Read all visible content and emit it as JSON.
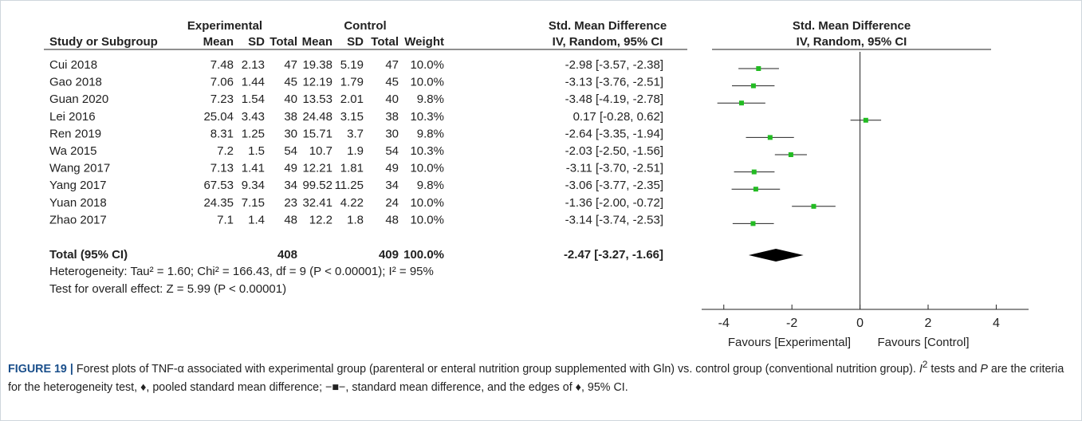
{
  "header": {
    "experimental": "Experimental",
    "control": "Control",
    "effect": "Std. Mean Difference",
    "plot_title": "Std. Mean Difference"
  },
  "columns": {
    "study": "Study or Subgroup",
    "exp_mean": "Mean",
    "exp_sd": "SD",
    "exp_total": "Total",
    "ctl_mean": "Mean",
    "ctl_sd": "SD",
    "ctl_total": "Total",
    "weight": "Weight",
    "ci": "IV, Random, 95% CI",
    "plot_ci": "IV, Random, 95% CI"
  },
  "rows": [
    {
      "study": "Cui 2018",
      "exp_mean": "7.48",
      "exp_sd": "2.13",
      "exp_total": "47",
      "ctl_mean": "19.38",
      "ctl_sd": "5.19",
      "ctl_total": "47",
      "weight": "10.0%",
      "ci": "-2.98 [-3.57, -2.38]",
      "est": -2.98,
      "lo": -3.57,
      "hi": -2.38
    },
    {
      "study": "Gao 2018",
      "exp_mean": "7.06",
      "exp_sd": "1.44",
      "exp_total": "45",
      "ctl_mean": "12.19",
      "ctl_sd": "1.79",
      "ctl_total": "45",
      "weight": "10.0%",
      "ci": "-3.13 [-3.76, -2.51]",
      "est": -3.13,
      "lo": -3.76,
      "hi": -2.51
    },
    {
      "study": "Guan 2020",
      "exp_mean": "7.23",
      "exp_sd": "1.54",
      "exp_total": "40",
      "ctl_mean": "13.53",
      "ctl_sd": "2.01",
      "ctl_total": "40",
      "weight": "9.8%",
      "ci": "-3.48 [-4.19, -2.78]",
      "est": -3.48,
      "lo": -4.19,
      "hi": -2.78
    },
    {
      "study": "Lei 2016",
      "exp_mean": "25.04",
      "exp_sd": "3.43",
      "exp_total": "38",
      "ctl_mean": "24.48",
      "ctl_sd": "3.15",
      "ctl_total": "38",
      "weight": "10.3%",
      "ci": "0.17 [-0.28, 0.62]",
      "est": 0.17,
      "lo": -0.28,
      "hi": 0.62
    },
    {
      "study": "Ren 2019",
      "exp_mean": "8.31",
      "exp_sd": "1.25",
      "exp_total": "30",
      "ctl_mean": "15.71",
      "ctl_sd": "3.7",
      "ctl_total": "30",
      "weight": "9.8%",
      "ci": "-2.64 [-3.35, -1.94]",
      "est": -2.64,
      "lo": -3.35,
      "hi": -1.94
    },
    {
      "study": "Wa 2015",
      "exp_mean": "7.2",
      "exp_sd": "1.5",
      "exp_total": "54",
      "ctl_mean": "10.7",
      "ctl_sd": "1.9",
      "ctl_total": "54",
      "weight": "10.3%",
      "ci": "-2.03 [-2.50, -1.56]",
      "est": -2.03,
      "lo": -2.5,
      "hi": -1.56
    },
    {
      "study": "Wang 2017",
      "exp_mean": "7.13",
      "exp_sd": "1.41",
      "exp_total": "49",
      "ctl_mean": "12.21",
      "ctl_sd": "1.81",
      "ctl_total": "49",
      "weight": "10.0%",
      "ci": "-3.11 [-3.70, -2.51]",
      "est": -3.11,
      "lo": -3.7,
      "hi": -2.51
    },
    {
      "study": "Yang 2017",
      "exp_mean": "67.53",
      "exp_sd": "9.34",
      "exp_total": "34",
      "ctl_mean": "99.52",
      "ctl_sd": "11.25",
      "ctl_total": "34",
      "weight": "9.8%",
      "ci": "-3.06 [-3.77, -2.35]",
      "est": -3.06,
      "lo": -3.77,
      "hi": -2.35
    },
    {
      "study": "Yuan 2018",
      "exp_mean": "24.35",
      "exp_sd": "7.15",
      "exp_total": "23",
      "ctl_mean": "32.41",
      "ctl_sd": "4.22",
      "ctl_total": "24",
      "weight": "10.0%",
      "ci": "-1.36 [-2.00, -0.72]",
      "est": -1.36,
      "lo": -2.0,
      "hi": -0.72
    },
    {
      "study": "Zhao 2017",
      "exp_mean": "7.1",
      "exp_sd": "1.4",
      "exp_total": "48",
      "ctl_mean": "12.2",
      "ctl_sd": "1.8",
      "ctl_total": "48",
      "weight": "10.0%",
      "ci": "-3.14 [-3.74, -2.53]",
      "est": -3.14,
      "lo": -3.74,
      "hi": -2.53
    }
  ],
  "total": {
    "study": "Total (95% CI)",
    "exp_total": "408",
    "ctl_total": "409",
    "weight": "100.0%",
    "ci": "-2.47 [-3.27, -1.66]",
    "est": -2.47,
    "lo": -3.27,
    "hi": -1.66
  },
  "heterogeneity": "Heterogeneity: Tau² = 1.60; Chi² = 166.43, df = 9 (P < 0.00001); I² = 95%",
  "overall": "Test for overall effect: Z = 5.99 (P < 0.00001)",
  "axis": {
    "xlim": [
      -4.65,
      4.95
    ],
    "xticks": [
      -4,
      -2,
      0,
      2,
      4
    ],
    "favours_left": "Favours [Experimental]",
    "favours_right": "Favours [Control]"
  },
  "caption": {
    "label": "FIGURE 19 |",
    "text1": " Forest plots of TNF-α associated with experimental group (parenteral or enteral nutrition group supplemented with Gln) vs. control group (conventional nutrition group). ",
    "i": "I",
    "sup": "2",
    "text2": " tests and ",
    "p": "P",
    "text3": " are the criteria for the heterogeneity test, ♦, pooled standard mean difference; −■−, standard mean difference, and the edges of ♦, 95% CI."
  }
}
